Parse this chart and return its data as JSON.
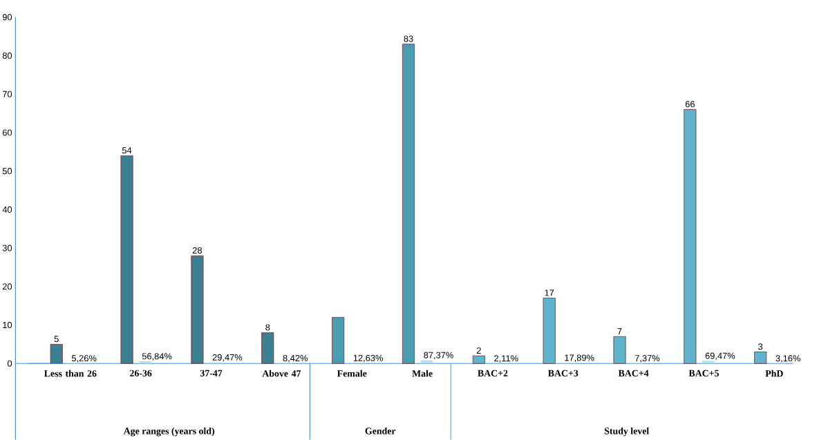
{
  "chart_data": {
    "type": "bar",
    "categories": [
      "Less than 26",
      "26-36",
      "37-47",
      "Above 47",
      "Female",
      "Male",
      "BAC+2",
      "BAC+3",
      "BAC+4",
      "BAC+5",
      "PhD"
    ],
    "series": [
      {
        "colors": [
          "#3b7f90",
          "#3b7f90",
          "#3b7f90",
          "#3b7f90",
          "#4a9cb3",
          "#4a9cb3",
          "#5fb3cc",
          "#5fb3cc",
          "#5fb3cc",
          "#5fb3cc",
          "#5fb3cc"
        ],
        "values": [
          5,
          54,
          28,
          8,
          12,
          83,
          2,
          17,
          7,
          66,
          3
        ],
        "value_labels": [
          "5",
          "54",
          "28",
          "8",
          null,
          "83",
          "2",
          "17",
          "7",
          "66",
          "3"
        ]
      },
      {
        "color": "#b9dfea",
        "values": [
          0.0526,
          0.5684,
          0.2947,
          0.0842,
          0.1263,
          0.8737,
          0.0211,
          0.1789,
          0.0737,
          0.6947,
          0.0316
        ],
        "value_labels": [
          "5,26%",
          "56,84%",
          "29,47%",
          "8,42%",
          "12,63%",
          "87,37%",
          "2,11%",
          "17,89%",
          "7,37%",
          "69,47%",
          "3,16%"
        ]
      }
    ],
    "ylim": [
      0,
      90
    ],
    "yticks": [
      0,
      10,
      20,
      30,
      40,
      50,
      60,
      70,
      80,
      90
    ],
    "grid": false,
    "annotations": [
      "Age ranges (years old)",
      "Gender",
      "Study level"
    ]
  }
}
